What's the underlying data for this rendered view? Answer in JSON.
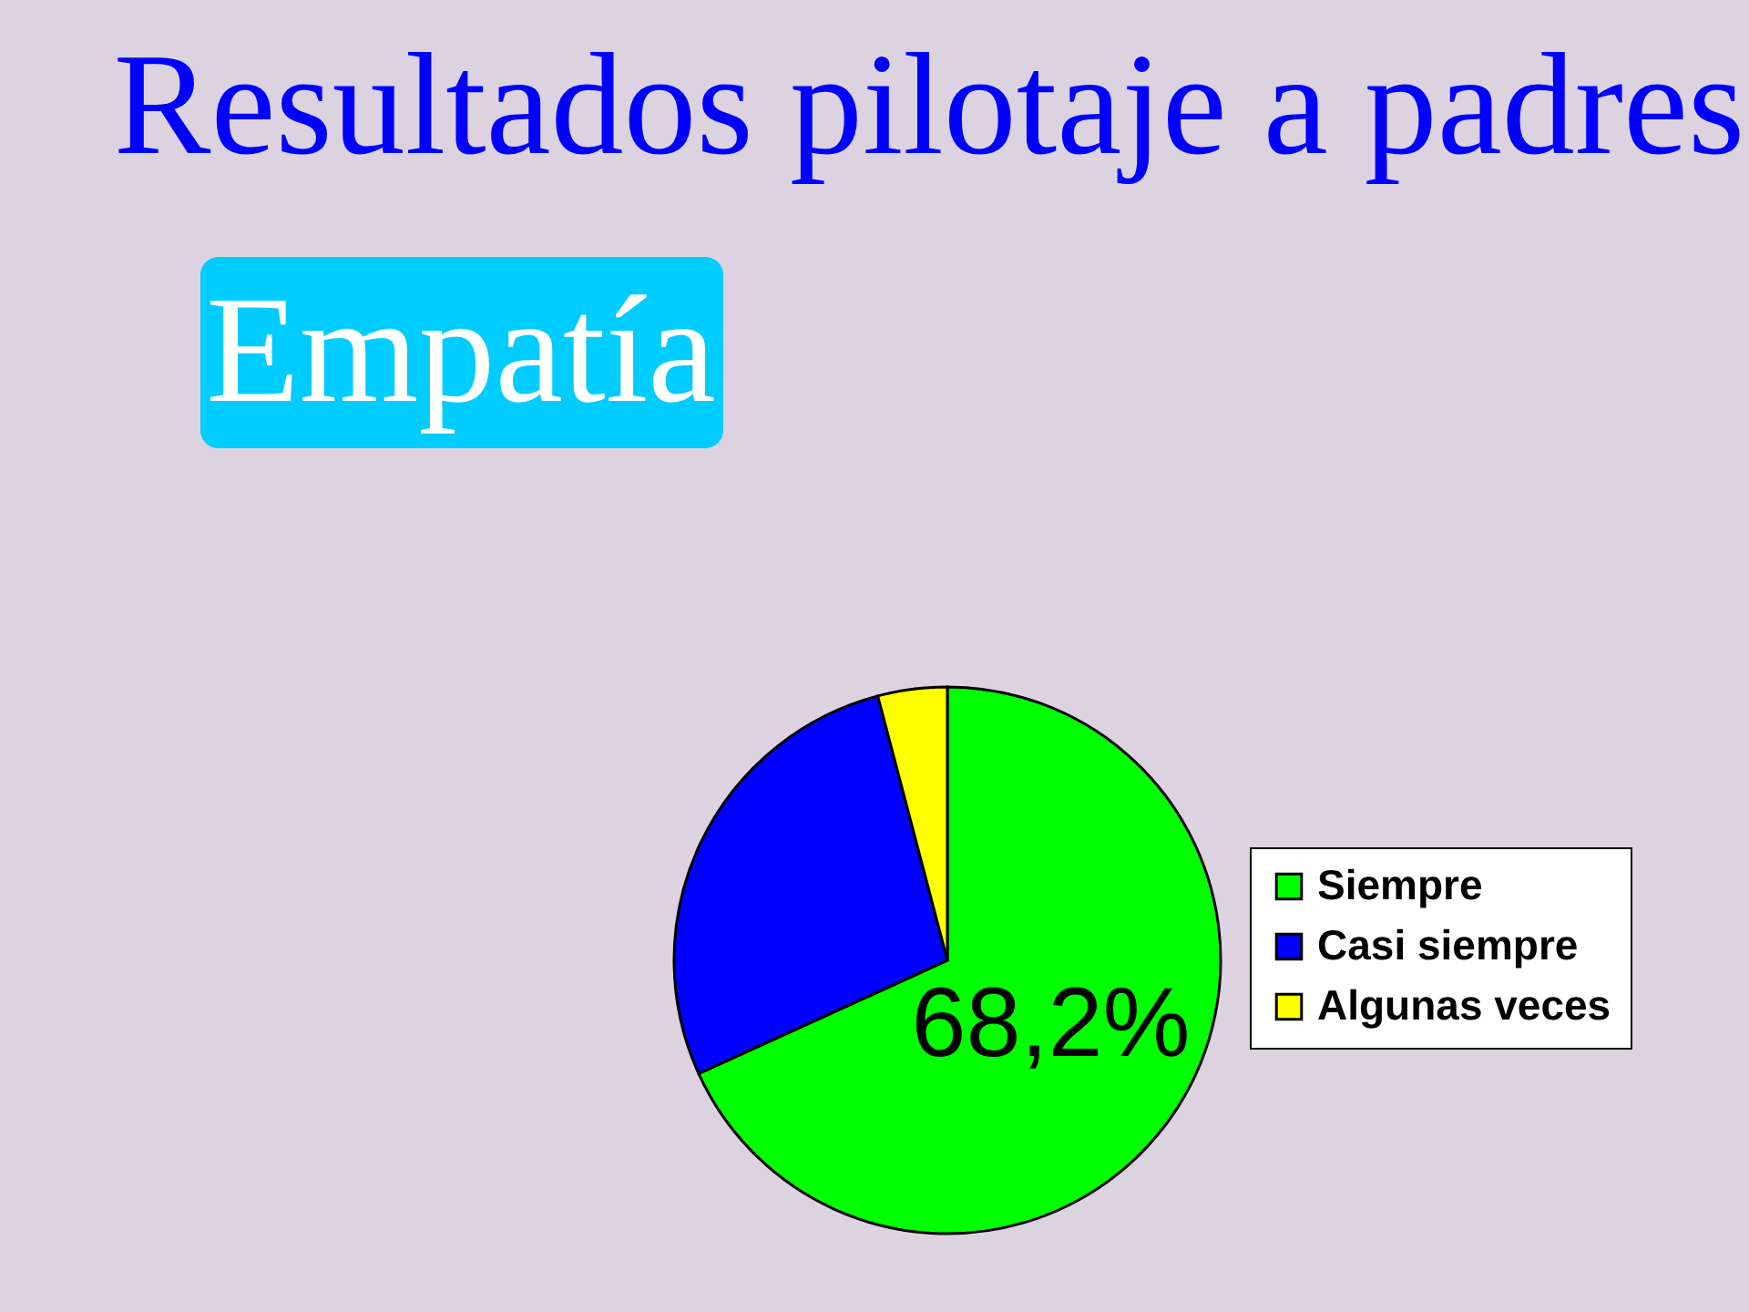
{
  "chart_data": {
    "type": "pie",
    "title": "Resultados pilotaje a padres",
    "subtitle": "Empatía",
    "categories": [
      "Siempre",
      "Casi siempre",
      "Algunas veces"
    ],
    "values": [
      68.2,
      27.7,
      4.1
    ],
    "colors": [
      "#00ff00",
      "#0000ff",
      "#ffff00"
    ],
    "value_labels": [
      "68,2%",
      null,
      null
    ],
    "legend": "right"
  }
}
